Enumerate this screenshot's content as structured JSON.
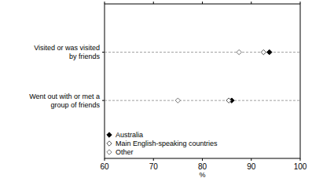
{
  "chart_data": {
    "type": "dot",
    "orientation": "horizontal",
    "categories": [
      "Visited or was visited by friends",
      "Went out with or met a group of friends"
    ],
    "series": [
      {
        "name": "Australia",
        "color": "#000000",
        "marker": "diamond-filled",
        "values": [
          93.7,
          86.0
        ]
      },
      {
        "name": "Main English-speaking countries",
        "color": "#555555",
        "marker": "diamond-open",
        "values": [
          92.5,
          85.4
        ]
      },
      {
        "name": "Other",
        "color": "#777777",
        "marker": "diamond-open",
        "values": [
          87.5,
          75.0
        ]
      }
    ],
    "x_label": "%",
    "xlim": [
      60,
      100
    ],
    "xticks": [
      60,
      70,
      80,
      90,
      100
    ],
    "grid": true,
    "legend": "lower left"
  }
}
